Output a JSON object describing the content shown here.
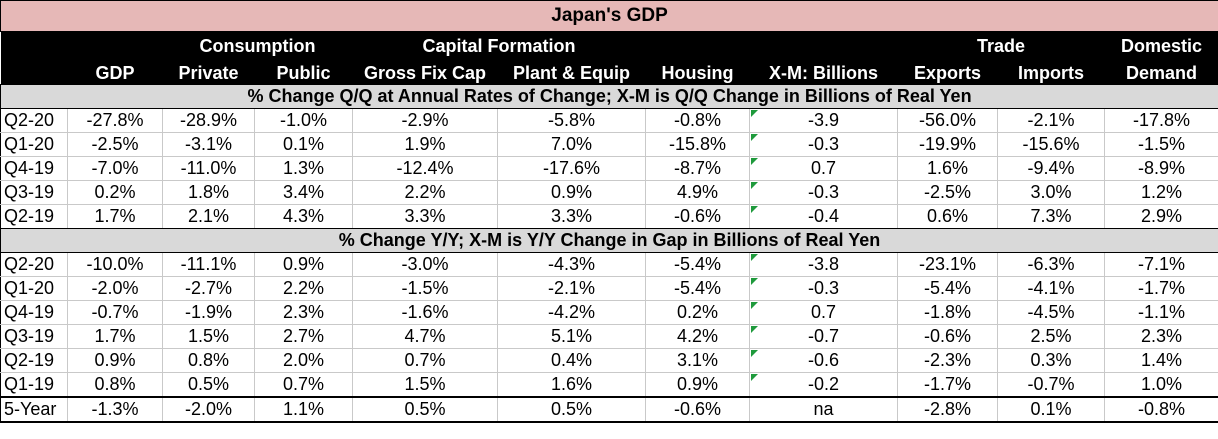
{
  "title": "Japan's GDP",
  "header_top": {
    "consumption": "Consumption",
    "capital_formation": "Capital Formation",
    "trade": "Trade",
    "domestic": "Domestic"
  },
  "header_cols": {
    "gdp": "GDP",
    "private": "Private",
    "public": "Public",
    "gross_fix_cap": "Gross Fix Cap",
    "plant_equip": "Plant & Equip",
    "housing": "Housing",
    "xm": "X-M: Billions",
    "exports": "Exports",
    "imports": "Imports",
    "demand": "Demand"
  },
  "section1": {
    "title": "% Change Q/Q at Annual Rates of Change; X-M is Q/Q Change in Billions of Real Yen",
    "rows": [
      [
        "Q2-20",
        "-27.8%",
        "-28.9%",
        "-1.0%",
        "-2.9%",
        "-5.8%",
        "-0.8%",
        "-3.9",
        "-56.0%",
        "-2.1%",
        "-17.8%"
      ],
      [
        "Q1-20",
        "-2.5%",
        "-3.1%",
        "0.1%",
        "1.9%",
        "7.0%",
        "-15.8%",
        "-0.3",
        "-19.9%",
        "-15.6%",
        "-1.5%"
      ],
      [
        "Q4-19",
        "-7.0%",
        "-11.0%",
        "1.3%",
        "-12.4%",
        "-17.6%",
        "-8.7%",
        "0.7",
        "1.6%",
        "-9.4%",
        "-8.9%"
      ],
      [
        "Q3-19",
        "0.2%",
        "1.8%",
        "3.4%",
        "2.2%",
        "0.9%",
        "4.9%",
        "-0.3",
        "-2.5%",
        "3.0%",
        "1.2%"
      ],
      [
        "Q2-19",
        "1.7%",
        "2.1%",
        "4.3%",
        "3.3%",
        "3.3%",
        "-0.6%",
        "-0.4",
        "0.6%",
        "7.3%",
        "2.9%"
      ]
    ]
  },
  "section2": {
    "title": "% Change Y/Y; X-M is Y/Y Change in Gap in Billions of Real Yen",
    "rows": [
      [
        "Q2-20",
        "-10.0%",
        "-11.1%",
        "0.9%",
        "-3.0%",
        "-4.3%",
        "-5.4%",
        "-3.8",
        "-23.1%",
        "-6.3%",
        "-7.1%"
      ],
      [
        "Q1-20",
        "-2.0%",
        "-2.7%",
        "2.2%",
        "-1.5%",
        "-2.1%",
        "-5.4%",
        "-0.3",
        "-5.4%",
        "-4.1%",
        "-1.7%"
      ],
      [
        "Q4-19",
        "-0.7%",
        "-1.9%",
        "2.3%",
        "-1.6%",
        "-4.2%",
        "0.2%",
        "0.7",
        "-1.8%",
        "-4.5%",
        "-1.1%"
      ],
      [
        "Q3-19",
        "1.7%",
        "1.5%",
        "2.7%",
        "4.7%",
        "5.1%",
        "4.2%",
        "-0.7",
        "-0.6%",
        "2.5%",
        "2.3%"
      ],
      [
        "Q2-19",
        "0.9%",
        "0.8%",
        "2.0%",
        "0.7%",
        "0.4%",
        "3.1%",
        "-0.6",
        "-2.3%",
        "0.3%",
        "1.4%"
      ],
      [
        "Q1-19",
        "0.8%",
        "0.5%",
        "0.7%",
        "1.5%",
        "1.6%",
        "0.9%",
        "-0.2",
        "-1.7%",
        "-0.7%",
        "1.0%"
      ]
    ]
  },
  "five_year": [
    "5-Year",
    "-1.3%",
    "-2.0%",
    "1.1%",
    "0.5%",
    "0.5%",
    "-0.6%",
    "na",
    "-2.8%",
    "0.1%",
    "-0.8%"
  ],
  "colors": {
    "title_bg": "#e6b8b7",
    "header_bg": "#000000",
    "section_bg": "#d9d9d9",
    "marker": "#1f9a3c"
  }
}
